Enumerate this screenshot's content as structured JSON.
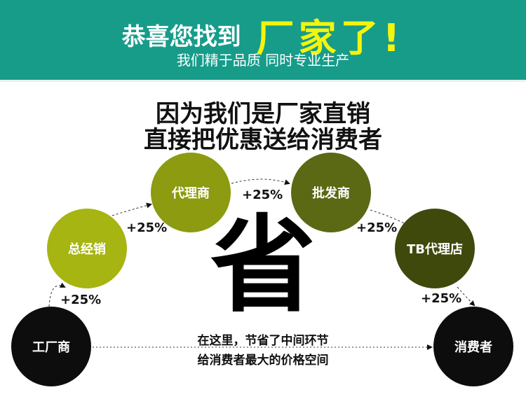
{
  "banner": {
    "title_white": "恭喜您找到",
    "title_yellow": "厂家了!",
    "subtitle": "我们精于品质 同时专业生产"
  },
  "headline": {
    "line1": "因为我们是厂家直销",
    "line2": "直接把优惠送给消费者"
  },
  "chain": [
    {
      "label": "工厂商",
      "color": "#0d0d0d"
    },
    {
      "label": "总经销",
      "color": "#a6b511"
    },
    {
      "label": "代理商",
      "color": "#8c9b0f"
    },
    {
      "label": "批发商",
      "color": "#5b6814"
    },
    {
      "label": "TB代理店",
      "color": "#3f490c"
    },
    {
      "label": "消费者",
      "color": "#0d0d0d"
    }
  ],
  "markups": [
    "+25%",
    "+25%",
    "+25%",
    "+25%",
    "+25%"
  ],
  "center_char": "省",
  "note": {
    "line1": "在这里，节省了中间环节",
    "line2": "给消费者最大的价格空间"
  },
  "colors": {
    "banner": "#179c8a",
    "highlight": "#f4f40c"
  }
}
